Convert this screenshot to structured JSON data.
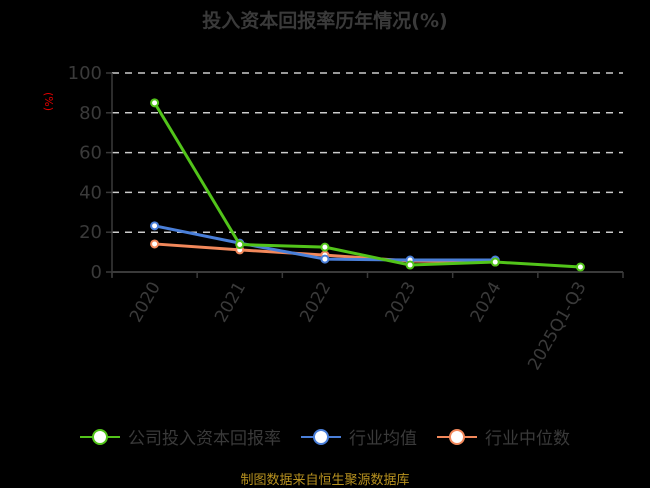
{
  "title": "投入资本回报率历年情况(%)",
  "unit_label": "(%)",
  "source": "制图数据来自恒生聚源数据库",
  "colors": {
    "company": "#52c41a",
    "industry_avg": "#4a7fd9",
    "industry_median": "#f2885b",
    "axis": "#3a3a3a",
    "grid": "#cccccc",
    "unit": "#e00000",
    "source": "#b8921f"
  },
  "legend": {
    "items": [
      {
        "label": "公司投入资本回报率",
        "color": "#52c41a"
      },
      {
        "label": "行业均值",
        "color": "#4a7fd9"
      },
      {
        "label": "行业中位数",
        "color": "#f2885b"
      }
    ]
  },
  "chart_data": {
    "type": "line",
    "title": "投入资本回报率历年情况(%)",
    "xlabel": "",
    "ylabel": "(%)",
    "categories": [
      "2020",
      "2021",
      "2022",
      "2023",
      "2024",
      "2025Q1-Q3"
    ],
    "y_ticks": [
      0,
      20,
      40,
      60,
      80,
      100
    ],
    "ylim": [
      0,
      100
    ],
    "grid": true,
    "legend_position": "bottom",
    "series": [
      {
        "name": "公司投入资本回报率",
        "color": "#52c41a",
        "values": [
          85.0,
          13.8,
          12.5,
          3.5,
          5.0,
          2.5
        ]
      },
      {
        "name": "行业均值",
        "color": "#4a7fd9",
        "values": [
          23.2,
          14.5,
          6.5,
          6.0,
          6.0,
          null
        ]
      },
      {
        "name": "行业中位数",
        "color": "#f2885b",
        "values": [
          14.1,
          11.1,
          8.5,
          5.5,
          5.0,
          null
        ]
      }
    ]
  }
}
